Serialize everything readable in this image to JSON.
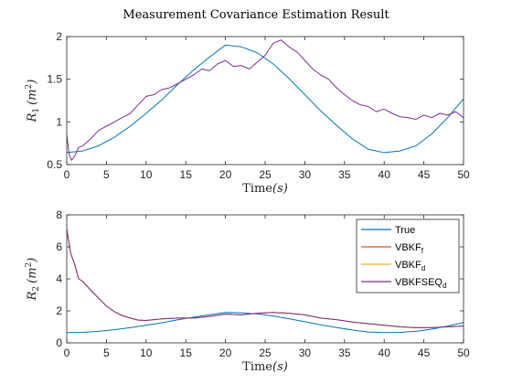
{
  "chart_data": [
    {
      "type": "line",
      "title": "Measurement Covariance Estimation Result",
      "xlabel": "Time",
      "xlabel_unit": "(s)",
      "ylabel_base": "R",
      "ylabel_sub": "1",
      "ylabel_unit_open": "(m",
      "ylabel_unit_sup": "2",
      "ylabel_unit_close": ")",
      "xlim": [
        0,
        50
      ],
      "ylim": [
        0.5,
        2
      ],
      "xticks": [
        "0",
        "5",
        "10",
        "15",
        "20",
        "25",
        "30",
        "35",
        "40",
        "45",
        "50"
      ],
      "yticks": [
        "0.5",
        "1",
        "1.5",
        "2"
      ],
      "grid": false,
      "series": [
        {
          "name": "True",
          "color": "#0072BD",
          "x": [
            0,
            2,
            4,
            6,
            8,
            10,
            12,
            14,
            16,
            18,
            20,
            22,
            24,
            26,
            28,
            30,
            32,
            34,
            36,
            38,
            40,
            42,
            44,
            46,
            48,
            50
          ],
          "y": [
            0.64,
            0.66,
            0.72,
            0.82,
            0.95,
            1.1,
            1.26,
            1.44,
            1.61,
            1.76,
            1.9,
            1.88,
            1.81,
            1.68,
            1.51,
            1.32,
            1.13,
            0.96,
            0.8,
            0.68,
            0.64,
            0.66,
            0.72,
            0.86,
            1.05,
            1.27
          ]
        },
        {
          "name": "VBKFSEQd",
          "color": "#7E2F8E",
          "x": [
            0,
            0.3,
            0.6,
            1,
            1.5,
            2,
            3,
            4,
            5,
            6,
            7,
            8,
            9,
            10,
            11,
            12,
            13,
            14,
            15,
            16,
            17,
            18,
            19,
            20,
            21,
            22,
            23,
            24,
            25,
            26,
            27,
            28,
            29,
            30,
            31,
            32,
            33,
            34,
            35,
            36,
            37,
            38,
            39,
            40,
            41,
            42,
            43,
            44,
            45,
            46,
            47,
            48,
            49,
            50
          ],
          "y": [
            0.85,
            0.62,
            0.55,
            0.6,
            0.7,
            0.72,
            0.8,
            0.9,
            0.95,
            1.0,
            1.05,
            1.1,
            1.2,
            1.3,
            1.32,
            1.38,
            1.4,
            1.45,
            1.5,
            1.55,
            1.62,
            1.6,
            1.68,
            1.72,
            1.65,
            1.66,
            1.62,
            1.7,
            1.78,
            1.92,
            1.96,
            1.88,
            1.82,
            1.72,
            1.62,
            1.55,
            1.5,
            1.4,
            1.32,
            1.25,
            1.2,
            1.18,
            1.12,
            1.15,
            1.1,
            1.06,
            1.05,
            1.03,
            1.08,
            1.05,
            1.1,
            1.08,
            1.12,
            1.05
          ]
        }
      ]
    },
    {
      "type": "line",
      "xlabel": "Time",
      "xlabel_unit": "(s)",
      "ylabel_base": "R",
      "ylabel_sub": "2",
      "ylabel_unit_open": "(m",
      "ylabel_unit_sup": "2",
      "ylabel_unit_close": ")",
      "xlim": [
        0,
        50
      ],
      "ylim": [
        0,
        8
      ],
      "xticks": [
        "0",
        "5",
        "10",
        "15",
        "20",
        "25",
        "30",
        "35",
        "40",
        "45",
        "50"
      ],
      "yticks": [
        "0",
        "2",
        "4",
        "6",
        "8"
      ],
      "grid": false,
      "legend_placement": "top-right",
      "series": [
        {
          "name": "True",
          "color": "#0072BD",
          "x": [
            0,
            2,
            4,
            6,
            8,
            10,
            12,
            14,
            16,
            18,
            20,
            22,
            24,
            26,
            28,
            30,
            32,
            34,
            36,
            38,
            40,
            42,
            44,
            46,
            48,
            50
          ],
          "y": [
            0.64,
            0.66,
            0.72,
            0.82,
            0.95,
            1.1,
            1.26,
            1.44,
            1.61,
            1.76,
            1.9,
            1.88,
            1.81,
            1.68,
            1.51,
            1.32,
            1.13,
            0.96,
            0.8,
            0.68,
            0.64,
            0.66,
            0.72,
            0.86,
            1.05,
            1.27
          ]
        },
        {
          "name": "VBKF",
          "name_sub": "f",
          "color": "#D95319",
          "x": [
            0,
            0.5,
            1,
            1.5,
            2,
            3,
            4,
            5,
            6,
            7,
            8,
            9,
            10,
            12,
            14,
            16,
            18,
            20,
            22,
            24,
            26,
            28,
            30,
            32,
            34,
            36,
            38,
            40,
            42,
            44,
            46,
            48,
            50
          ],
          "y": [
            7.1,
            5.6,
            4.9,
            4.0,
            3.85,
            3.3,
            2.8,
            2.3,
            1.95,
            1.7,
            1.55,
            1.42,
            1.4,
            1.5,
            1.55,
            1.55,
            1.65,
            1.8,
            1.75,
            1.85,
            1.9,
            1.85,
            1.75,
            1.55,
            1.45,
            1.3,
            1.2,
            1.1,
            1.0,
            0.95,
            0.95,
            1.0,
            1.05
          ]
        },
        {
          "name": "VBKF",
          "name_sub": "d",
          "color": "#EDB120",
          "x": [
            0,
            0.5,
            1,
            1.5,
            2,
            3,
            4,
            5,
            6,
            7,
            8,
            9,
            10,
            12,
            14,
            16,
            18,
            20,
            22,
            24,
            26,
            28,
            30,
            32,
            34,
            36,
            38,
            40,
            42,
            44,
            46,
            48,
            50
          ],
          "y": [
            7.1,
            5.6,
            4.9,
            4.0,
            3.85,
            3.3,
            2.8,
            2.3,
            1.95,
            1.7,
            1.55,
            1.42,
            1.4,
            1.5,
            1.55,
            1.55,
            1.65,
            1.8,
            1.75,
            1.85,
            1.9,
            1.85,
            1.75,
            1.55,
            1.45,
            1.3,
            1.2,
            1.1,
            1.0,
            0.95,
            0.95,
            1.0,
            1.05
          ]
        },
        {
          "name": "VBKFSEQ",
          "name_sub": "d",
          "color": "#7E2F8E",
          "x": [
            0,
            0.5,
            1,
            1.5,
            2,
            3,
            4,
            5,
            6,
            7,
            8,
            9,
            10,
            12,
            14,
            16,
            18,
            20,
            22,
            24,
            26,
            28,
            30,
            32,
            34,
            36,
            38,
            40,
            42,
            44,
            46,
            48,
            50
          ],
          "y": [
            7.1,
            5.6,
            4.9,
            4.0,
            3.85,
            3.3,
            2.8,
            2.3,
            1.95,
            1.7,
            1.55,
            1.42,
            1.4,
            1.5,
            1.55,
            1.55,
            1.65,
            1.8,
            1.75,
            1.85,
            1.9,
            1.85,
            1.75,
            1.55,
            1.45,
            1.3,
            1.2,
            1.1,
            1.0,
            0.95,
            0.95,
            1.0,
            1.05
          ]
        }
      ]
    }
  ]
}
